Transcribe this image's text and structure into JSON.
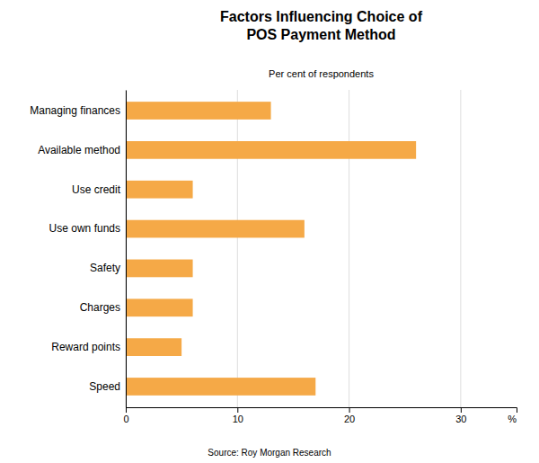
{
  "chart_data": {
    "type": "bar",
    "orientation": "horizontal",
    "title": "Factors Influencing Choice of\nPOS Payment Method",
    "subtitle": "Per cent of respondents",
    "source": "Source: Roy Morgan Research",
    "xlabel": "%",
    "categories": [
      "Speed",
      "Reward points",
      "Charges",
      "Safety",
      "Use own funds",
      "Use credit",
      "Available method",
      "Managing finances"
    ],
    "values": [
      17,
      5,
      6,
      6,
      16,
      6,
      26,
      13
    ],
    "color": "#F5A947",
    "xlim": [
      0,
      35
    ],
    "xticks": [
      0,
      10,
      20,
      30
    ],
    "grid": true
  }
}
